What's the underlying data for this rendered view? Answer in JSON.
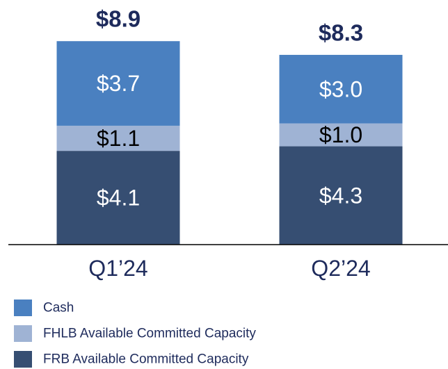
{
  "chart_data": {
    "type": "stacked_bar",
    "categories": [
      "Q1’24",
      "Q2’24"
    ],
    "series": [
      {
        "name": "FRB Available Committed Capacity",
        "color": "#364e72",
        "label_color": "#ffffff",
        "values": [
          4.1,
          4.3
        ],
        "value_labels": [
          "$4.1",
          "$4.3"
        ]
      },
      {
        "name": "FHLB Available Committed Capacity",
        "color": "#9fb3d4",
        "label_color": "#000000",
        "values": [
          1.1,
          1.0
        ],
        "value_labels": [
          "$1.1",
          "$1.0"
        ]
      },
      {
        "name": "Cash",
        "color": "#4a80c0",
        "label_color": "#ffffff",
        "values": [
          3.7,
          3.0
        ],
        "value_labels": [
          "$3.7",
          "$3.0"
        ]
      }
    ],
    "totals": [
      8.9,
      8.3
    ],
    "total_labels": [
      "$8.9",
      "$8.3"
    ],
    "total_color": "#1e2b5c",
    "ylim": [
      0,
      10.7
    ]
  }
}
